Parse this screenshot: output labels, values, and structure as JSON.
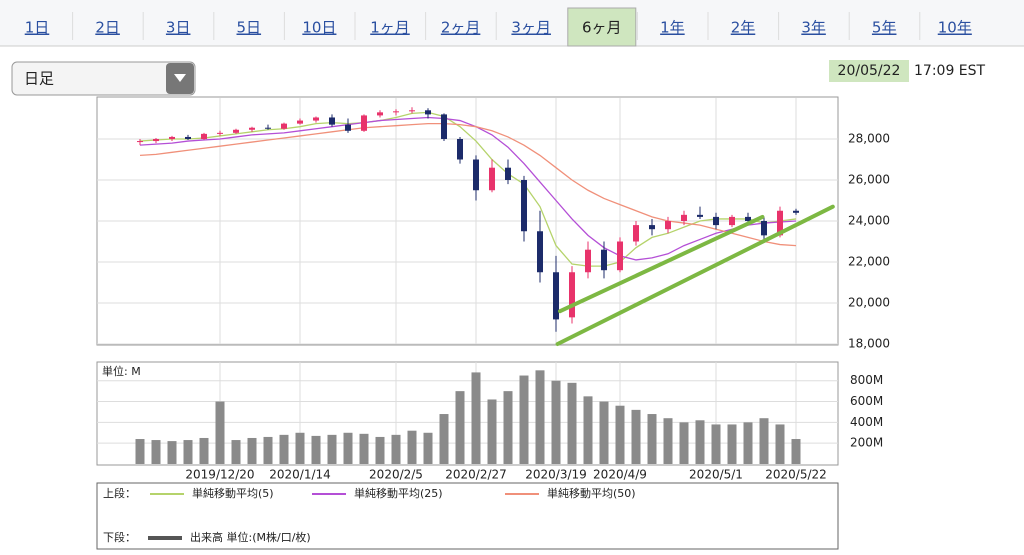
{
  "tabs": [
    "1日",
    "2日",
    "3日",
    "5日",
    "10日",
    "1ヶ月",
    "2ヶ月",
    "3ヶ月",
    "6ヶ月",
    "1年",
    "2年",
    "3年",
    "5年",
    "10年"
  ],
  "selected_tab": 8,
  "interval_select": "日足",
  "timestamp_date": "20/05/22",
  "timestamp_time": "17:09 EST",
  "chart_data": [
    {
      "type": "candlestick",
      "legend_label": "上段：",
      "up_color": "#e8336b",
      "down_color": "#1c2b6a",
      "ohlc": [
        [
          27850,
          28000,
          27700,
          27900
        ],
        [
          27900,
          28050,
          27800,
          28000
        ],
        [
          28000,
          28150,
          27900,
          28100
        ],
        [
          28100,
          28200,
          27950,
          28000
        ],
        [
          28000,
          28300,
          27950,
          28250
        ],
        [
          28250,
          28400,
          28150,
          28300
        ],
        [
          28300,
          28500,
          28250,
          28450
        ],
        [
          28450,
          28600,
          28350,
          28550
        ],
        [
          28550,
          28700,
          28450,
          28500
        ],
        [
          28500,
          28800,
          28450,
          28750
        ],
        [
          28750,
          29000,
          28700,
          28900
        ],
        [
          28900,
          29100,
          28800,
          29050
        ],
        [
          29050,
          29200,
          28600,
          28700
        ],
        [
          28700,
          29000,
          28300,
          28400
        ],
        [
          28400,
          29200,
          28350,
          29150
        ],
        [
          29150,
          29400,
          29050,
          29300
        ],
        [
          29300,
          29450,
          29150,
          29350
        ],
        [
          29350,
          29550,
          29250,
          29400
        ],
        [
          29400,
          29500,
          29000,
          29200
        ],
        [
          29200,
          29250,
          27900,
          28000
        ],
        [
          28000,
          28100,
          26800,
          27000
        ],
        [
          27000,
          27200,
          25000,
          25500
        ],
        [
          25500,
          27000,
          25400,
          26600
        ],
        [
          26600,
          27000,
          25800,
          26000
        ],
        [
          26000,
          26200,
          23000,
          23500
        ],
        [
          23500,
          24500,
          21000,
          21500
        ],
        [
          21500,
          22300,
          18600,
          19200
        ],
        [
          19300,
          21800,
          19000,
          21500
        ],
        [
          21500,
          23000,
          21200,
          22600
        ],
        [
          22600,
          23000,
          21200,
          21600
        ],
        [
          21600,
          23200,
          21500,
          23000
        ],
        [
          23000,
          24000,
          22800,
          23800
        ],
        [
          23800,
          24100,
          23300,
          23600
        ],
        [
          23600,
          24200,
          23400,
          24000
        ],
        [
          24000,
          24500,
          23800,
          24300
        ],
        [
          24300,
          24700,
          24100,
          24200
        ],
        [
          24200,
          24400,
          23600,
          23800
        ],
        [
          23800,
          24300,
          23700,
          24200
        ],
        [
          24200,
          24400,
          23800,
          24000
        ],
        [
          24000,
          24200,
          23000,
          23300
        ],
        [
          23300,
          24700,
          23200,
          24500
        ],
        [
          24500,
          24600,
          24300,
          24400
        ]
      ],
      "series": [
        {
          "name": "単純移動平均(5)",
          "color": "#b5d36b",
          "values": [
            27900,
            27950,
            28000,
            28000,
            28050,
            28150,
            28250,
            28350,
            28450,
            28500,
            28600,
            28750,
            28800,
            28750,
            28800,
            28900,
            29050,
            29250,
            29300,
            29100,
            28600,
            27900,
            27000,
            26300,
            25800,
            24700,
            22800,
            21900,
            21800,
            21800,
            22000,
            22700,
            23200,
            23400,
            23700,
            24000,
            24100,
            24100,
            24100,
            23900,
            24000,
            24100
          ]
        },
        {
          "name": "単純移動平均(25)",
          "color": "#b44fd6",
          "values": [
            27700,
            27750,
            27800,
            27900,
            27950,
            28000,
            28100,
            28200,
            28250,
            28300,
            28400,
            28500,
            28600,
            28700,
            28800,
            28900,
            28950,
            29000,
            29050,
            29000,
            28900,
            28600,
            28200,
            27600,
            26800,
            25900,
            25000,
            24100,
            23300,
            22700,
            22300,
            22100,
            22200,
            22400,
            22800,
            23100,
            23400,
            23600,
            23800,
            23900,
            23950,
            24000
          ]
        },
        {
          "name": "単純移動平均(50)",
          "color": "#f0907a",
          "values": [
            27200,
            27250,
            27350,
            27450,
            27550,
            27650,
            27750,
            27850,
            27950,
            28050,
            28150,
            28250,
            28350,
            28450,
            28550,
            28600,
            28650,
            28700,
            28750,
            28750,
            28700,
            28600,
            28400,
            28100,
            27700,
            27200,
            26600,
            26000,
            25500,
            25100,
            24800,
            24500,
            24200,
            24000,
            23900,
            23800,
            23600,
            23400,
            23200,
            23000,
            22850,
            22800
          ]
        }
      ],
      "trend_lines": {
        "color": "#7db843",
        "lines": [
          {
            "x": [
              26.25,
              38.9
            ],
            "y": [
              19600,
              24200
            ]
          },
          {
            "x": [
              26.1,
              43.3
            ],
            "y": [
              18000,
              24700
            ]
          }
        ]
      },
      "ylim": [
        18000,
        30000
      ],
      "yticks": [
        {
          "value": 18000,
          "label": "18,000"
        },
        {
          "value": 20000,
          "label": "20,000"
        },
        {
          "value": 22000,
          "label": "22,000"
        },
        {
          "value": 24000,
          "label": "24,000"
        },
        {
          "value": 26000,
          "label": "26,000"
        },
        {
          "value": 28000,
          "label": "28,000"
        }
      ],
      "grid": true
    },
    {
      "type": "bar",
      "unit_label": "単位: M",
      "legend_label": "下段：",
      "series_name": "出来高 単位:(M株/口/枚)",
      "color": "#8a8a8a",
      "categories": [
        null,
        null,
        null,
        null,
        null,
        "2019/12/20",
        null,
        null,
        null,
        null,
        "2020/1/14",
        null,
        null,
        null,
        null,
        null,
        "2020/2/5",
        null,
        null,
        null,
        null,
        "2020/2/27",
        null,
        null,
        null,
        null,
        "2020/3/19",
        null,
        null,
        null,
        "2020/4/9",
        null,
        null,
        null,
        null,
        null,
        "2020/5/1",
        null,
        null,
        null,
        null,
        "2020/5/22"
      ],
      "values": [
        240,
        230,
        220,
        230,
        250,
        600,
        230,
        250,
        260,
        280,
        300,
        270,
        280,
        300,
        290,
        260,
        280,
        320,
        300,
        480,
        700,
        880,
        620,
        700,
        850,
        900,
        800,
        780,
        650,
        600,
        560,
        520,
        480,
        440,
        400,
        420,
        380,
        380,
        400,
        440,
        380,
        240
      ],
      "ylim": [
        0,
        980
      ],
      "yticks": [
        {
          "value": 200,
          "label": "200M"
        },
        {
          "value": 400,
          "label": "400M"
        },
        {
          "value": 600,
          "label": "600M"
        },
        {
          "value": 800,
          "label": "800M"
        }
      ],
      "grid": true
    }
  ]
}
